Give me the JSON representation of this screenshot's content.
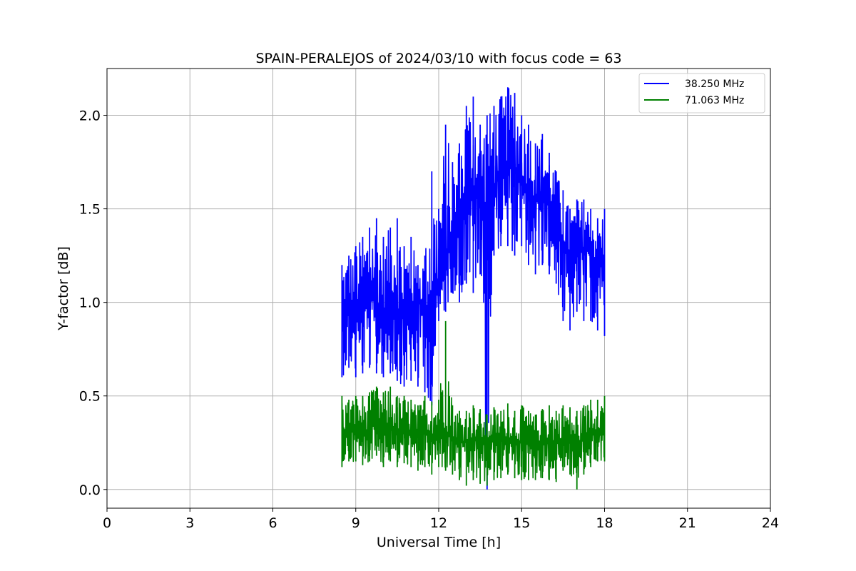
{
  "chart_data": {
    "type": "line",
    "title": "SPAIN-PERALEJOS of 2024/03/10 with focus code = 63",
    "xlabel": "Universal Time [h]",
    "ylabel": "Y-factor [dB]",
    "xlim": [
      0,
      24
    ],
    "ylim": [
      -0.1,
      2.25
    ],
    "xticks": [
      0,
      3,
      6,
      9,
      12,
      15,
      18,
      21,
      24
    ],
    "xtick_labels": [
      "0",
      "3",
      "6",
      "9",
      "12",
      "15",
      "18",
      "21",
      "24"
    ],
    "yticks": [
      0.0,
      0.5,
      1.0,
      1.5,
      2.0
    ],
    "ytick_labels": [
      "0.0",
      "0.5",
      "1.0",
      "1.5",
      "2.0"
    ],
    "grid": true,
    "legend_position": "top-right",
    "series": [
      {
        "name": "38.250 MHz",
        "color": "#0000ff",
        "x": [
          8.5,
          8.75,
          9.0,
          9.25,
          9.5,
          9.75,
          10.0,
          10.25,
          10.5,
          10.75,
          11.0,
          11.25,
          11.5,
          11.75,
          12.0,
          12.25,
          12.5,
          12.75,
          13.0,
          13.25,
          13.5,
          13.75,
          14.0,
          14.25,
          14.5,
          14.75,
          15.0,
          15.25,
          15.5,
          15.75,
          16.0,
          16.25,
          16.5,
          16.75,
          17.0,
          17.25,
          17.5,
          17.75,
          18.0
        ],
        "values": [
          0.95,
          1.0,
          0.95,
          0.98,
          1.02,
          1.0,
          0.95,
          1.05,
          0.97,
          0.9,
          0.95,
          1.0,
          0.98,
          0.85,
          1.1,
          1.25,
          1.3,
          1.4,
          1.55,
          1.6,
          1.55,
          1.5,
          1.6,
          1.7,
          1.75,
          1.72,
          1.65,
          1.6,
          1.55,
          1.58,
          1.52,
          1.45,
          1.3,
          1.2,
          1.25,
          1.3,
          1.25,
          1.2,
          1.2
        ],
        "y_min": [
          0.6,
          0.65,
          0.6,
          0.62,
          0.65,
          0.62,
          0.6,
          0.62,
          0.58,
          0.55,
          0.58,
          0.55,
          0.52,
          0.45,
          0.9,
          0.95,
          1.05,
          1.0,
          1.1,
          1.05,
          1.15,
          0.0,
          1.25,
          1.3,
          1.3,
          1.25,
          1.3,
          1.2,
          1.15,
          1.2,
          1.15,
          1.1,
          0.9,
          0.85,
          0.95,
          0.9,
          0.9,
          0.85,
          0.82
        ],
        "y_max": [
          1.2,
          1.25,
          1.3,
          1.35,
          1.4,
          1.45,
          1.35,
          1.4,
          1.45,
          1.3,
          1.35,
          1.2,
          1.25,
          1.7,
          1.5,
          1.95,
          1.75,
          1.85,
          2.05,
          2.1,
          1.95,
          2.0,
          2.05,
          2.1,
          2.15,
          2.12,
          2.0,
          1.95,
          1.85,
          1.9,
          1.8,
          1.7,
          1.6,
          1.5,
          1.55,
          1.55,
          1.5,
          1.45,
          1.5
        ]
      },
      {
        "name": "71.063 MHz",
        "color": "#008000",
        "x": [
          8.5,
          8.75,
          9.0,
          9.25,
          9.5,
          9.75,
          10.0,
          10.25,
          10.5,
          10.75,
          11.0,
          11.25,
          11.5,
          11.75,
          12.0,
          12.25,
          12.5,
          12.75,
          13.0,
          13.25,
          13.5,
          13.75,
          14.0,
          14.25,
          14.5,
          14.75,
          15.0,
          15.25,
          15.5,
          15.75,
          16.0,
          16.25,
          16.5,
          16.75,
          17.0,
          17.25,
          17.5,
          17.75,
          18.0
        ],
        "values": [
          0.3,
          0.3,
          0.32,
          0.3,
          0.33,
          0.35,
          0.32,
          0.33,
          0.3,
          0.32,
          0.3,
          0.28,
          0.3,
          0.29,
          0.3,
          0.31,
          0.28,
          0.26,
          0.25,
          0.27,
          0.26,
          0.24,
          0.27,
          0.26,
          0.28,
          0.25,
          0.26,
          0.25,
          0.24,
          0.26,
          0.25,
          0.25,
          0.28,
          0.26,
          0.22,
          0.27,
          0.3,
          0.32,
          0.3
        ],
        "y_min": [
          0.12,
          0.15,
          0.15,
          0.13,
          0.15,
          0.18,
          0.12,
          0.15,
          0.12,
          0.14,
          0.12,
          0.1,
          0.12,
          0.08,
          0.12,
          0.1,
          0.08,
          0.05,
          0.02,
          0.05,
          0.03,
          0.02,
          0.05,
          0.06,
          0.08,
          0.06,
          0.05,
          0.05,
          0.05,
          0.06,
          0.05,
          0.04,
          0.1,
          0.08,
          0.0,
          0.08,
          0.12,
          0.15,
          0.15
        ],
        "y_max": [
          0.5,
          0.48,
          0.5,
          0.5,
          0.52,
          0.55,
          0.52,
          0.55,
          0.5,
          0.5,
          0.48,
          0.45,
          0.5,
          0.47,
          0.48,
          0.9,
          0.45,
          0.42,
          0.42,
          0.45,
          0.43,
          0.4,
          0.44,
          0.42,
          0.46,
          0.42,
          0.45,
          0.42,
          0.4,
          0.43,
          0.45,
          0.42,
          0.45,
          0.44,
          0.42,
          0.45,
          0.48,
          0.48,
          0.5
        ]
      }
    ]
  }
}
